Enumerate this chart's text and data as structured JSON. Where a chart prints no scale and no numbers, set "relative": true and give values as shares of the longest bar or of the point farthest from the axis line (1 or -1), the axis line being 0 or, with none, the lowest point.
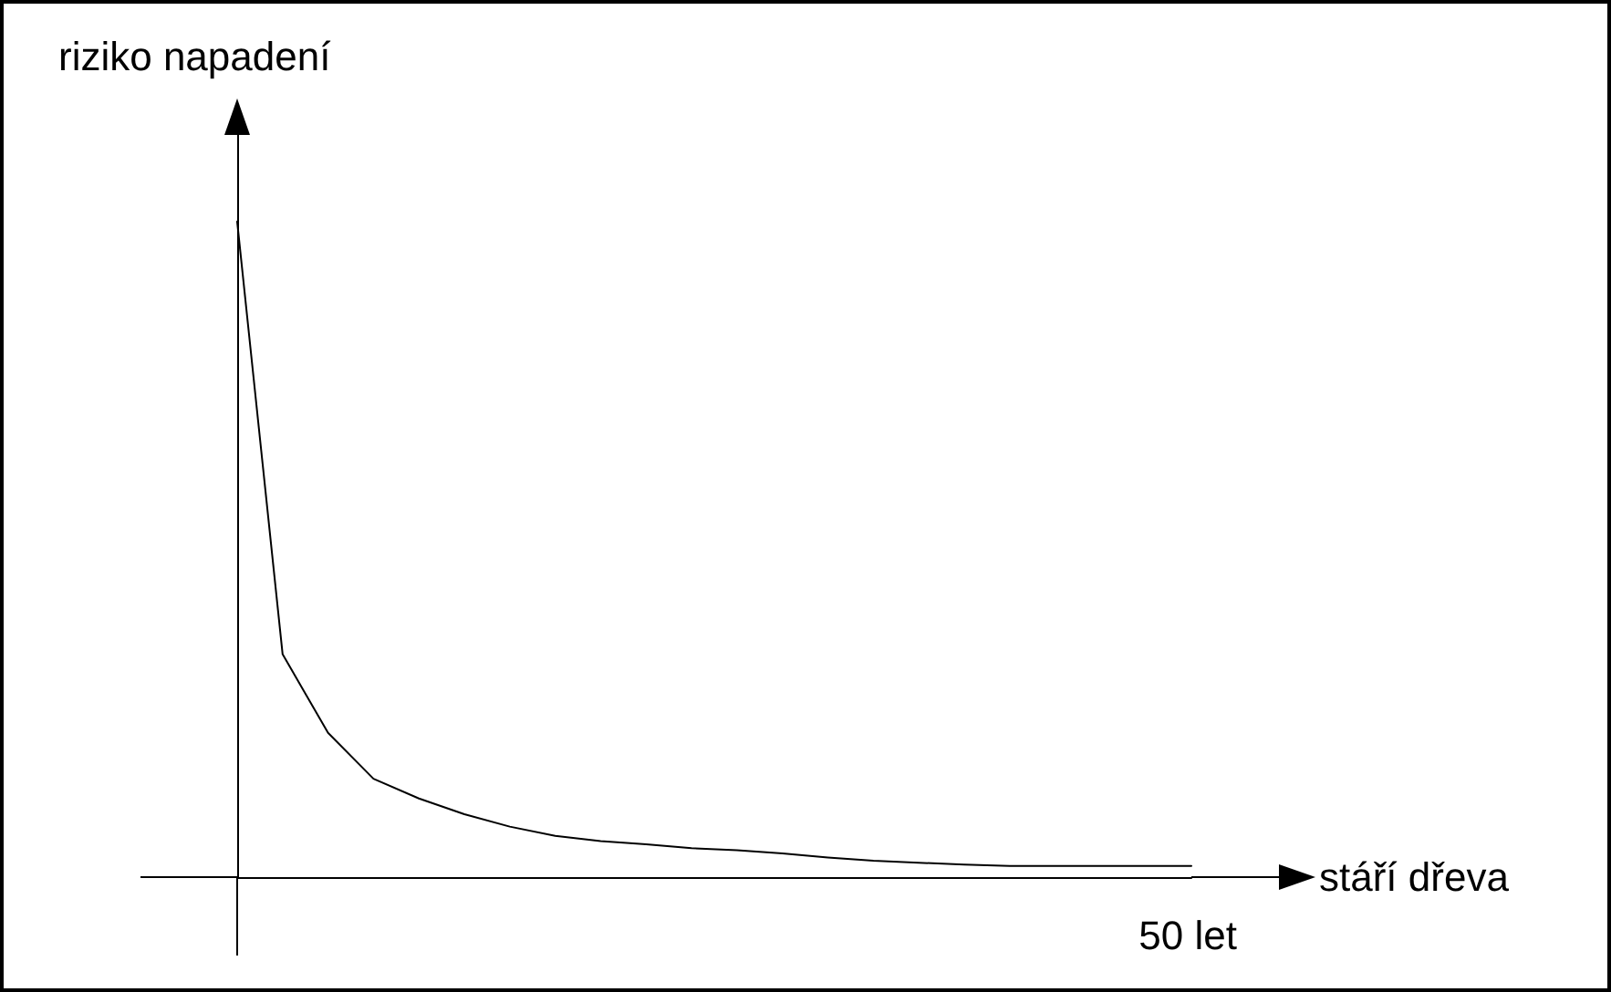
{
  "chart_data": {
    "type": "line",
    "relative": true,
    "xlabel": "stáří dřeva",
    "ylabel": "riziko napadení",
    "categories": [
      null,
      null,
      null,
      null,
      null,
      null,
      null,
      null,
      null,
      null,
      null,
      null,
      null,
      null,
      null,
      null,
      null,
      null,
      null,
      null,
      null,
      null
    ],
    "series": [
      {
        "color": "#000000",
        "values": [
          1,
          0.34,
          0.22,
          0.15,
          0.12,
          0.096,
          0.077,
          0.063,
          0.055,
          0.05,
          0.044,
          0.041,
          0.036,
          0.03,
          0.025,
          0.022,
          0.019,
          0.017,
          0.017,
          0.017,
          0.017,
          0.017
        ]
      }
    ],
    "annotations": [
      "50 let"
    ],
    "marker": "none",
    "line_style": "solid"
  }
}
